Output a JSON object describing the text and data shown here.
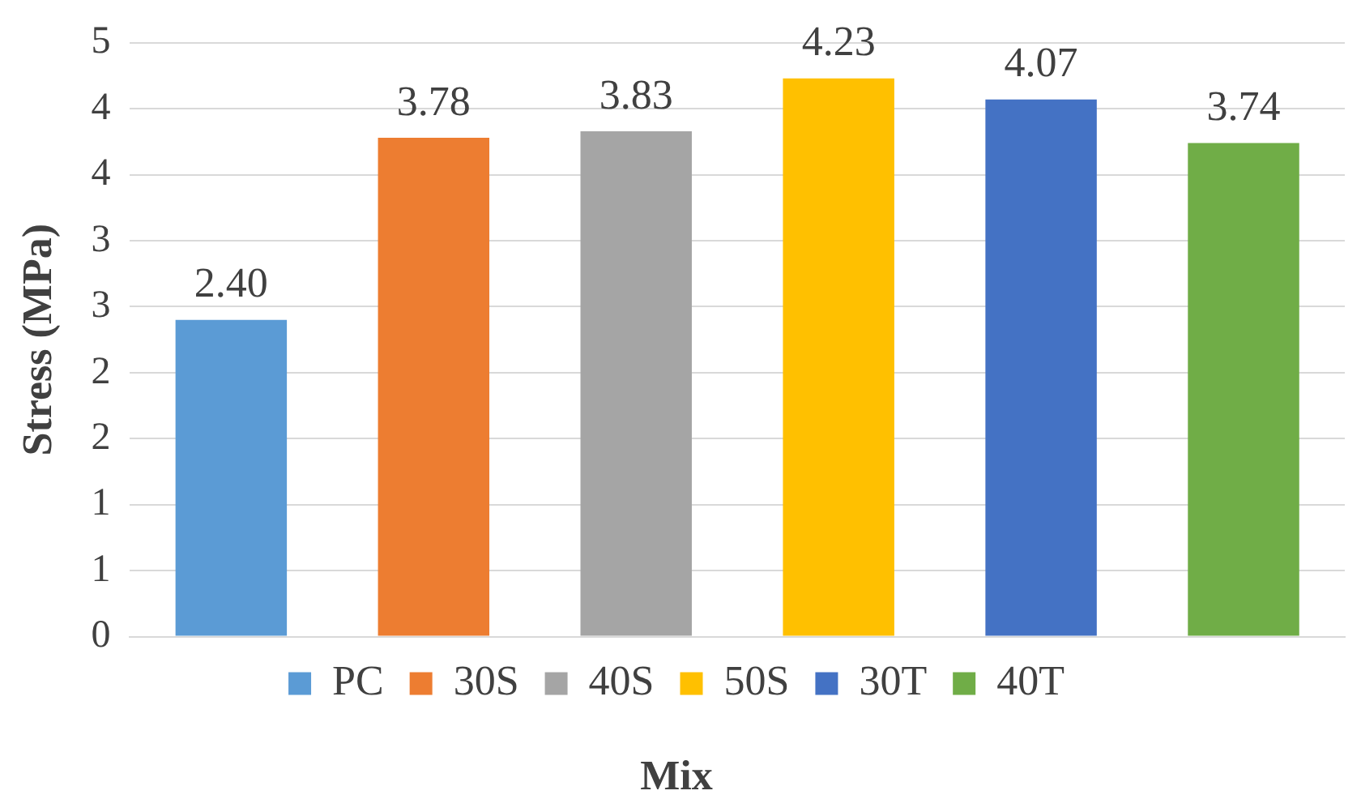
{
  "chart_data": {
    "type": "bar",
    "xlabel": "Mix",
    "ylabel": "Stress (MPa)",
    "categories": [
      null
    ],
    "series": [
      {
        "name": "PC",
        "color": "#5b9bd5",
        "values": [
          2.4
        ],
        "value_labels": [
          "2.40"
        ]
      },
      {
        "name": "30S",
        "color": "#ed7d31",
        "values": [
          3.78
        ],
        "value_labels": [
          "3.78"
        ]
      },
      {
        "name": "40S",
        "color": "#a5a5a5",
        "values": [
          3.83
        ],
        "value_labels": [
          "3.83"
        ]
      },
      {
        "name": "50S",
        "color": "#ffc000",
        "values": [
          4.23
        ],
        "value_labels": [
          "4.23"
        ]
      },
      {
        "name": "30T",
        "color": "#4472c4",
        "values": [
          4.07
        ],
        "value_labels": [
          "4.07"
        ]
      },
      {
        "name": "40T",
        "color": "#70ad47",
        "values": [
          3.74
        ],
        "value_labels": [
          "3.74"
        ]
      }
    ],
    "ylim": [
      0,
      4.5
    ],
    "yticks": [
      0,
      {
        "value": 0.5,
        "label": "1"
      },
      1,
      {
        "value": 1.5,
        "label": "2"
      },
      2,
      {
        "value": 2.5,
        "label": "3"
      },
      3,
      {
        "value": 3.5,
        "label": "4"
      },
      4,
      {
        "value": 4.5,
        "label": "5"
      }
    ],
    "grid": "y",
    "legend": "bottom",
    "tick_labels": "y"
  }
}
